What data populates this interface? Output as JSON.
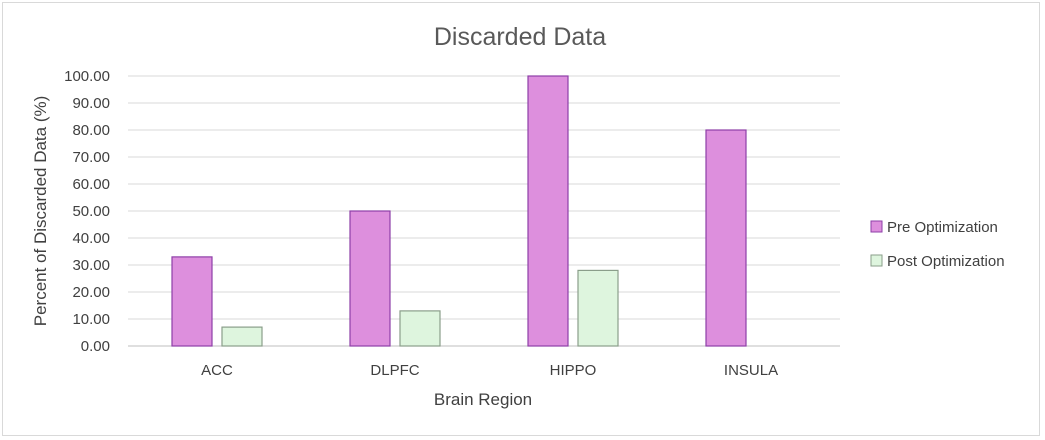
{
  "chart_data": {
    "type": "bar",
    "title": "Discarded Data",
    "xlabel": "Brain Region",
    "ylabel": "Percent  of Discarded Data (%)",
    "categories": [
      "ACC",
      "DLPFC",
      "HIPPO",
      "INSULA"
    ],
    "series": [
      {
        "name": "Pre Optimization",
        "values": [
          33,
          50,
          100,
          80
        ],
        "color": "#dd8fdd",
        "stroke": "#8e3fa8"
      },
      {
        "name": "Post Optimization",
        "values": [
          7,
          13,
          28,
          0
        ],
        "color": "#def5de",
        "stroke": "#8a9e8a"
      }
    ],
    "ylim": [
      0,
      100
    ],
    "yticks": [
      "0.00",
      "10.00",
      "20.00",
      "30.00",
      "40.00",
      "50.00",
      "60.00",
      "70.00",
      "80.00",
      "90.00",
      "100.00"
    ],
    "grid": true,
    "legend": "right"
  }
}
